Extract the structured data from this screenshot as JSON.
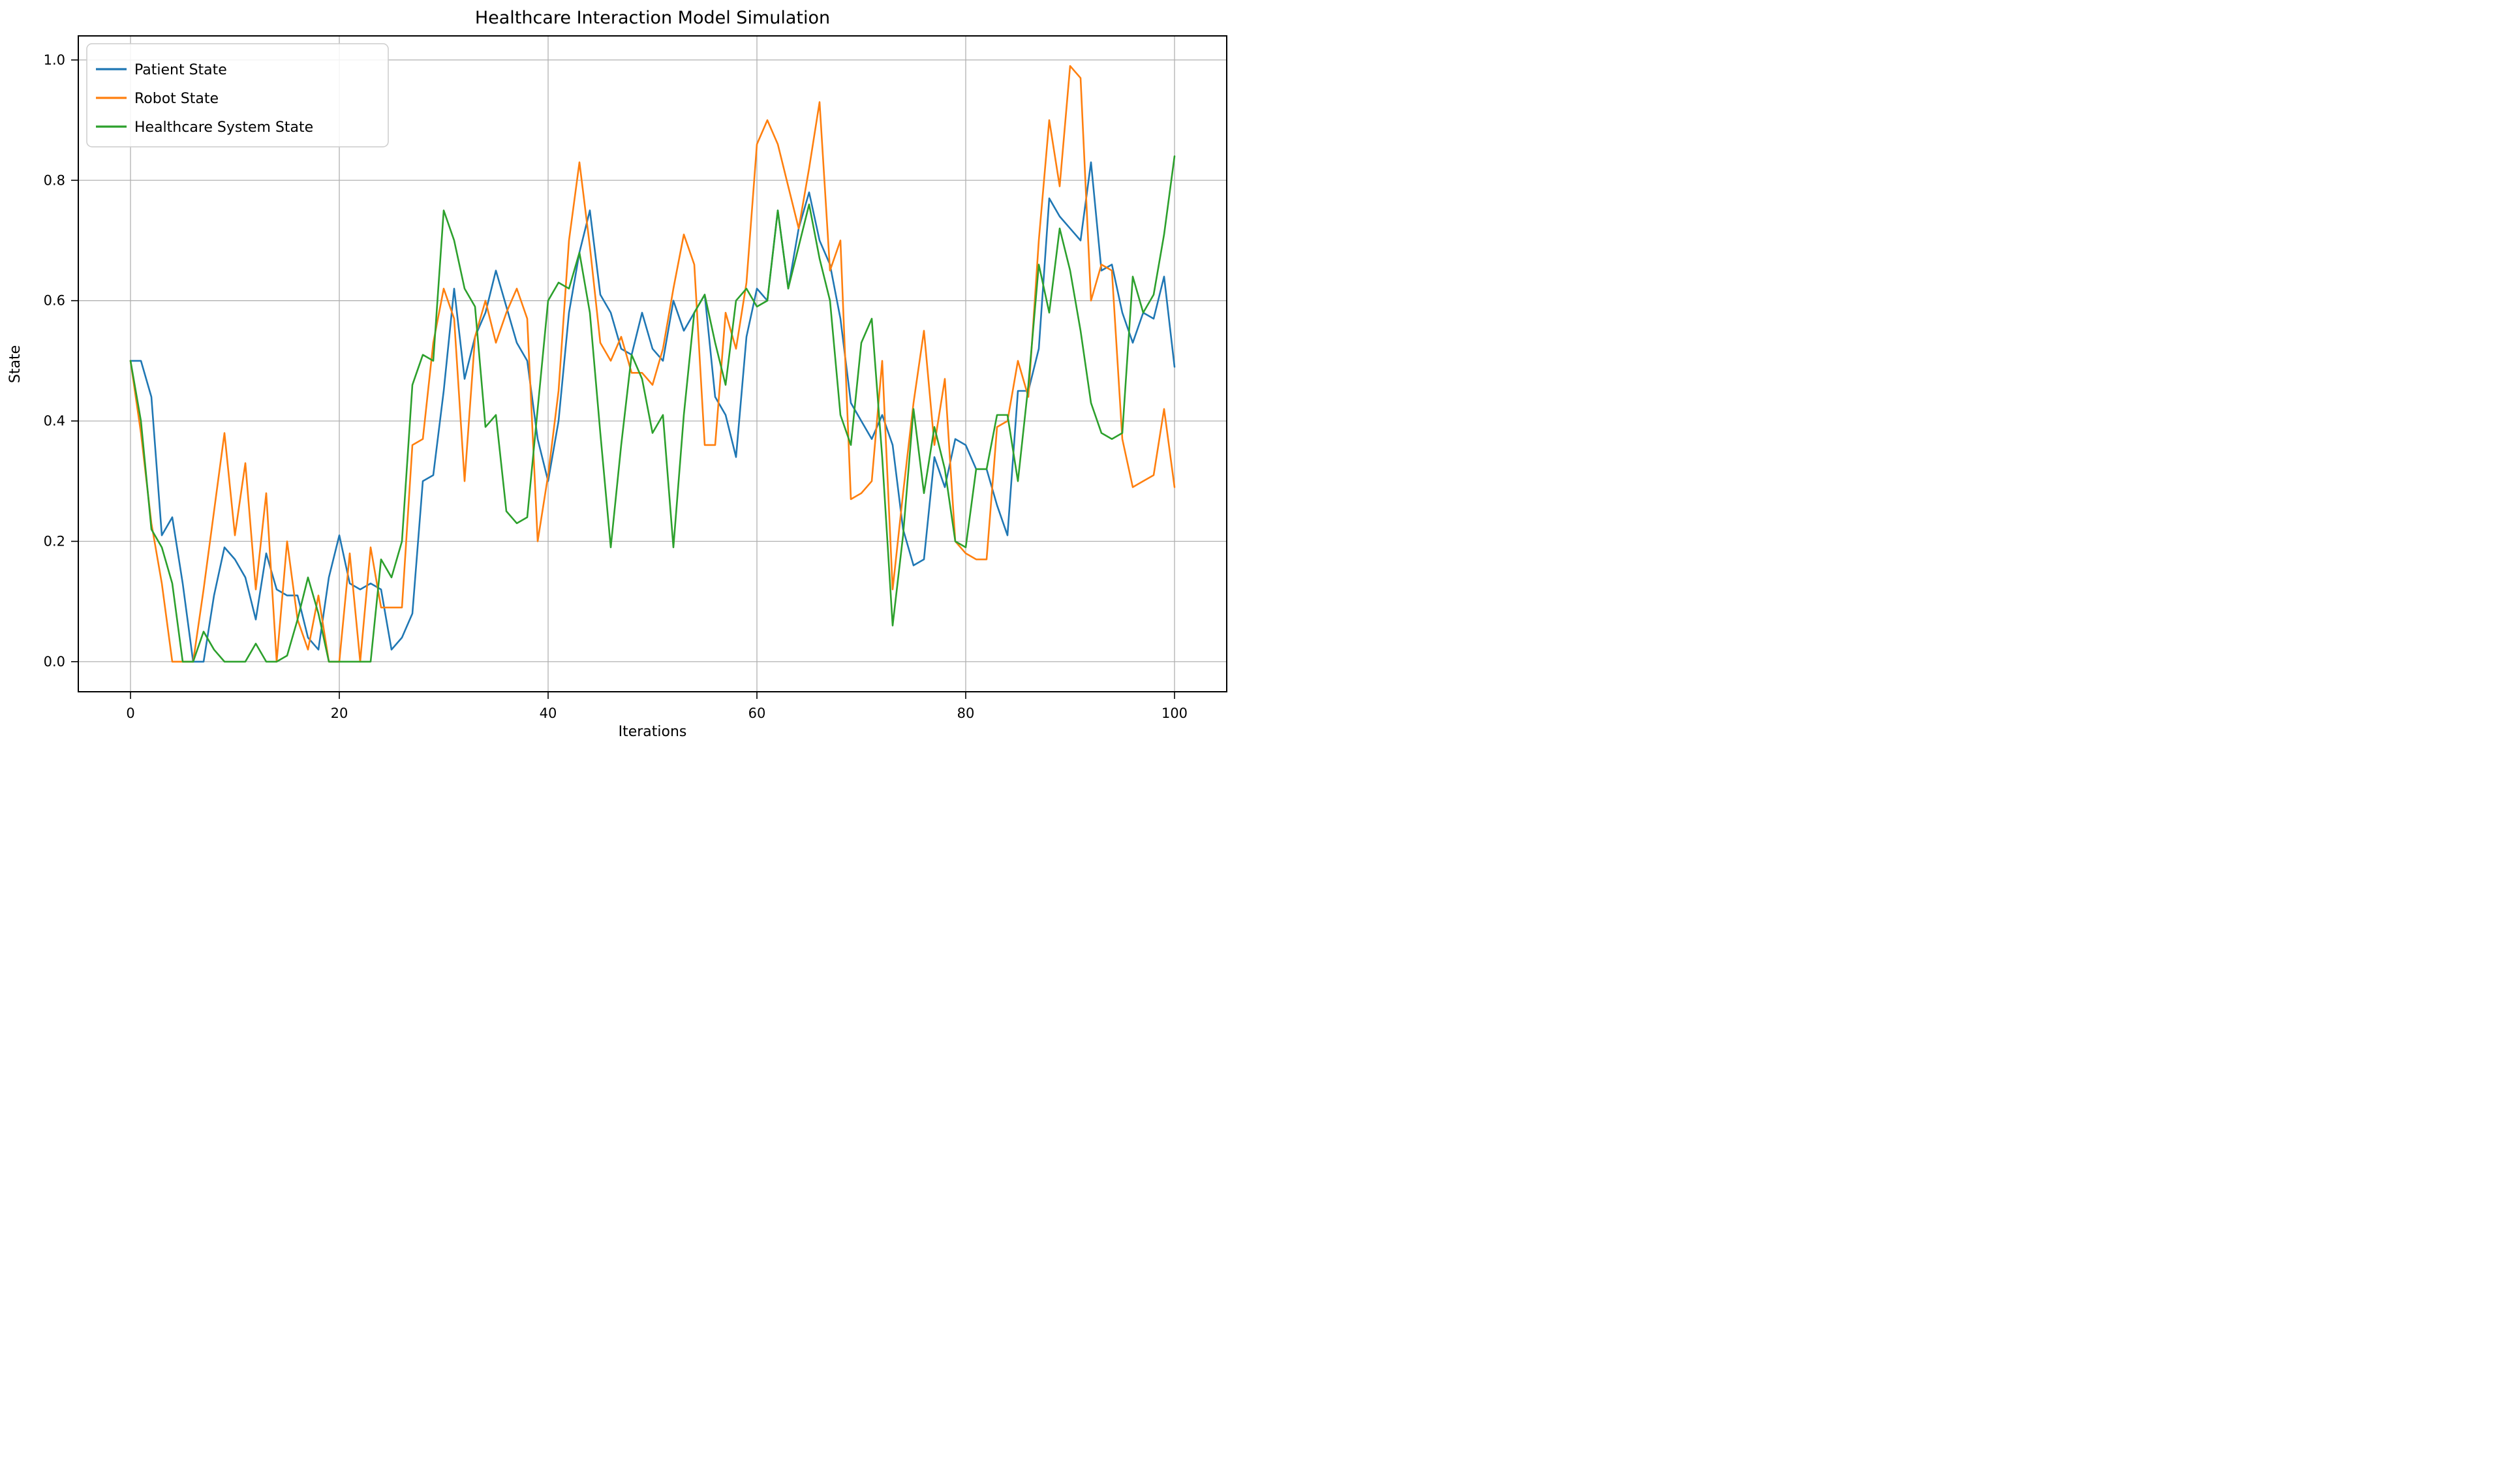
{
  "figure": {
    "background": "#ffffff",
    "grid_color": "#b0b0b0",
    "spine_color": "#000000",
    "text_color": "#000000"
  },
  "chart_data": {
    "type": "line",
    "title": "Healthcare Interaction Model Simulation",
    "xlabel": "Iterations",
    "ylabel": "State",
    "grid": true,
    "legend_position": "upper-left",
    "xlim": [
      -5,
      105
    ],
    "ylim": [
      -0.05,
      1.04
    ],
    "x_ticks": [
      0,
      20,
      40,
      60,
      80,
      100
    ],
    "y_ticks": [
      "0.0",
      "0.2",
      "0.4",
      "0.6",
      "0.8",
      "1.0"
    ],
    "x_step": 1,
    "series": [
      {
        "name": "Patient State",
        "color": "#1f77b4",
        "values": [
          0.5,
          0.5,
          0.44,
          0.21,
          0.24,
          0.13,
          0.0,
          0.0,
          0.11,
          0.19,
          0.17,
          0.14,
          0.07,
          0.18,
          0.12,
          0.11,
          0.11,
          0.04,
          0.02,
          0.14,
          0.21,
          0.13,
          0.12,
          0.13,
          0.12,
          0.02,
          0.04,
          0.08,
          0.3,
          0.31,
          0.45,
          0.62,
          0.47,
          0.54,
          0.58,
          0.65,
          0.59,
          0.53,
          0.5,
          0.37,
          0.3,
          0.4,
          0.58,
          0.68,
          0.75,
          0.61,
          0.58,
          0.52,
          0.51,
          0.58,
          0.52,
          0.5,
          0.6,
          0.55,
          0.58,
          0.61,
          0.44,
          0.41,
          0.34,
          0.54,
          0.62,
          0.6,
          0.75,
          0.62,
          0.72,
          0.78,
          0.7,
          0.66,
          0.57,
          0.43,
          0.4,
          0.37,
          0.41,
          0.36,
          0.22,
          0.16,
          0.17,
          0.34,
          0.29,
          0.37,
          0.36,
          0.32,
          0.32,
          0.26,
          0.21,
          0.45,
          0.45,
          0.52,
          0.77,
          0.74,
          0.72,
          0.7,
          0.83,
          0.65,
          0.66,
          0.58,
          0.53,
          0.58,
          0.57,
          0.64,
          0.49
        ]
      },
      {
        "name": "Robot State",
        "color": "#ff7f0e",
        "values": [
          0.5,
          0.38,
          0.23,
          0.13,
          0.0,
          0.0,
          0.0,
          0.12,
          0.25,
          0.38,
          0.21,
          0.33,
          0.12,
          0.28,
          0.0,
          0.2,
          0.07,
          0.02,
          0.11,
          0.0,
          0.0,
          0.18,
          0.0,
          0.19,
          0.09,
          0.09,
          0.09,
          0.36,
          0.37,
          0.53,
          0.62,
          0.57,
          0.3,
          0.54,
          0.6,
          0.53,
          0.58,
          0.62,
          0.57,
          0.2,
          0.31,
          0.45,
          0.7,
          0.83,
          0.69,
          0.53,
          0.5,
          0.54,
          0.48,
          0.48,
          0.46,
          0.52,
          0.62,
          0.71,
          0.66,
          0.36,
          0.36,
          0.58,
          0.52,
          0.63,
          0.86,
          0.9,
          0.86,
          0.79,
          0.72,
          0.82,
          0.93,
          0.65,
          0.7,
          0.27,
          0.28,
          0.3,
          0.5,
          0.12,
          0.28,
          0.43,
          0.55,
          0.36,
          0.47,
          0.2,
          0.18,
          0.17,
          0.17,
          0.39,
          0.4,
          0.5,
          0.44,
          0.7,
          0.9,
          0.79,
          0.99,
          0.97,
          0.6,
          0.66,
          0.65,
          0.37,
          0.29,
          0.3,
          0.31,
          0.42,
          0.29
        ]
      },
      {
        "name": "Healthcare System State",
        "color": "#2ca02c",
        "values": [
          0.5,
          0.4,
          0.22,
          0.19,
          0.13,
          0.0,
          0.0,
          0.05,
          0.02,
          0.0,
          0.0,
          0.0,
          0.03,
          0.0,
          0.0,
          0.01,
          0.07,
          0.14,
          0.08,
          0.0,
          0.0,
          0.0,
          0.0,
          0.0,
          0.17,
          0.14,
          0.2,
          0.46,
          0.51,
          0.5,
          0.75,
          0.7,
          0.62,
          0.59,
          0.39,
          0.41,
          0.25,
          0.23,
          0.24,
          0.42,
          0.6,
          0.63,
          0.62,
          0.68,
          0.58,
          0.38,
          0.19,
          0.36,
          0.51,
          0.47,
          0.38,
          0.41,
          0.19,
          0.41,
          0.58,
          0.61,
          0.53,
          0.46,
          0.6,
          0.62,
          0.59,
          0.6,
          0.75,
          0.62,
          0.69,
          0.76,
          0.67,
          0.6,
          0.41,
          0.36,
          0.53,
          0.57,
          0.34,
          0.06,
          0.21,
          0.42,
          0.28,
          0.39,
          0.32,
          0.2,
          0.19,
          0.32,
          0.32,
          0.41,
          0.41,
          0.3,
          0.46,
          0.66,
          0.58,
          0.72,
          0.65,
          0.55,
          0.43,
          0.38,
          0.37,
          0.38,
          0.64,
          0.58,
          0.61,
          0.71,
          0.84
        ]
      }
    ]
  }
}
